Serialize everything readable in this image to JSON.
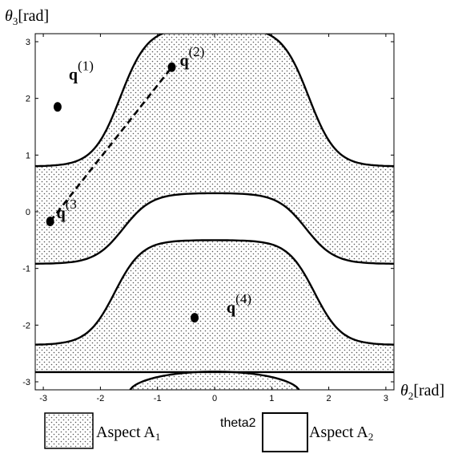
{
  "chart_data": {
    "type": "scatter",
    "xlabel_symbol": "θ",
    "xlabel_sub": "2",
    "xlabel_unit": "[rad]",
    "ylabel_symbol": "θ",
    "ylabel_sub": "3",
    "ylabel_unit": "[rad]",
    "xlim": [
      -3.14159,
      3.14159
    ],
    "ylim": [
      -3.14159,
      3.14159
    ],
    "x_ticks": [
      -3,
      -2,
      -1,
      0,
      1,
      2,
      3
    ],
    "y_ticks": [
      -3,
      -2,
      -1,
      0,
      1,
      2,
      3
    ],
    "grid": false,
    "aspects": [
      {
        "name": "Aspect A",
        "sub": "1",
        "fill": "dotted"
      },
      {
        "name": "Aspect A",
        "sub": "2",
        "fill": "blank"
      }
    ],
    "center_caption": "theta2",
    "points": [
      {
        "label": "q",
        "sup": "(1)",
        "x": -2.75,
        "y": 1.85
      },
      {
        "label": "q",
        "sup": "(2)",
        "x": -0.75,
        "y": 2.55
      },
      {
        "label": "q",
        "sup": "(3",
        "x": -2.88,
        "y": -0.17
      },
      {
        "label": "q",
        "sup": "(4)",
        "x": -0.35,
        "y": -1.87
      }
    ],
    "path": {
      "from": "q(3)",
      "to": "q(2)",
      "style": "dashed"
    }
  }
}
